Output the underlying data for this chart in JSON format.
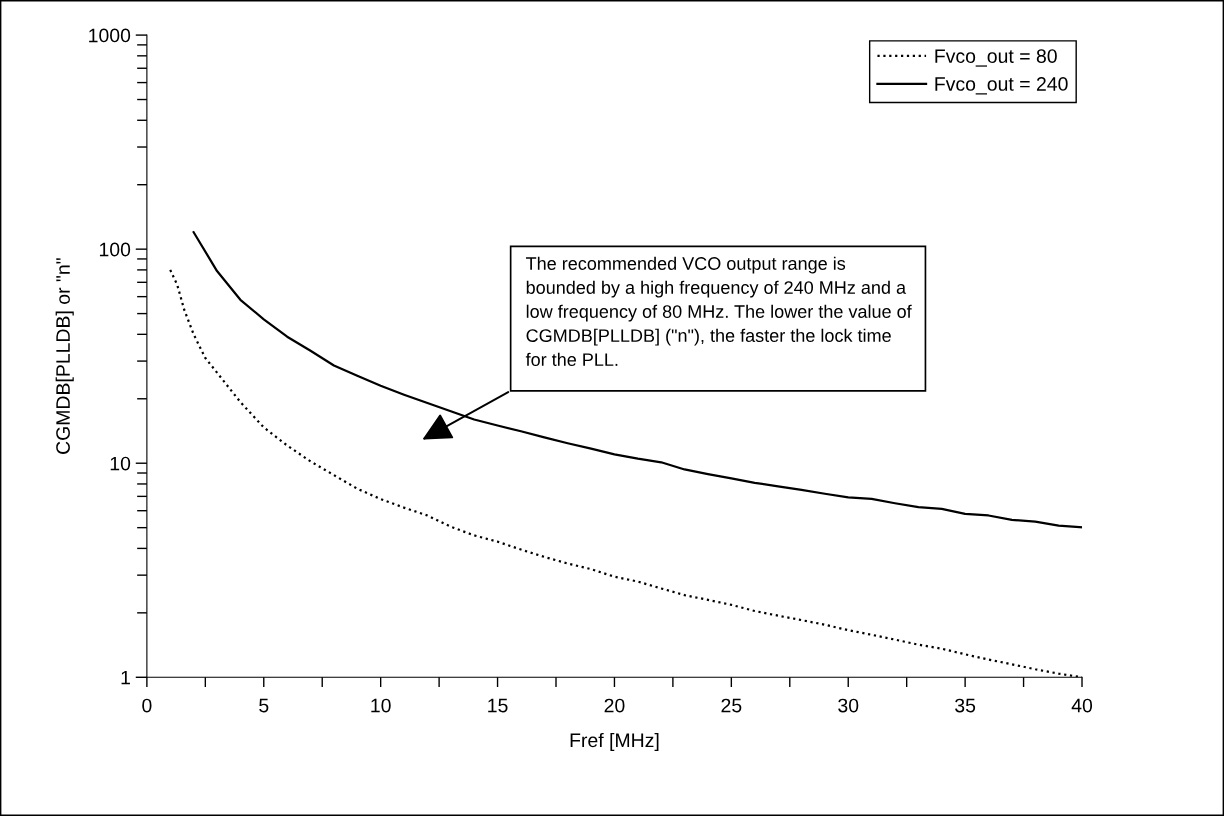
{
  "chart_data": {
    "type": "line",
    "xlabel": "Fref [MHz]",
    "ylabel": "CGMDB[PLLDB] or \"n\"",
    "log": "y",
    "xlim": [
      0,
      40
    ],
    "ylim": [
      1,
      1000
    ],
    "xticks": [
      0,
      {
        "value": 2.5,
        "label": null
      },
      5,
      {
        "value": 7.5,
        "label": null
      },
      10,
      {
        "value": 12.5,
        "label": null
      },
      15,
      {
        "value": 17.5,
        "label": null
      },
      20,
      {
        "value": 22.5,
        "label": null
      },
      25,
      {
        "value": 27.5,
        "label": null
      },
      30,
      {
        "value": 32.5,
        "label": null
      },
      35,
      {
        "value": 37.5,
        "label": null
      },
      40
    ],
    "yticks": [
      1,
      10,
      100,
      1000
    ],
    "grid": false,
    "legend": "top right",
    "annotations": [
      "The recommended VCO output range is bounded by a high frequency of 240 MHz and a low frequency of 80 MHz. The lower the value of CGMDB[PLLDB] (\"n\"), the faster the lock time for the PLL."
    ],
    "series": [
      {
        "name": "Fvco_out = 80",
        "color": "#000000",
        "line_style": "dotted",
        "x": [
          1,
          1.3,
          1.6,
          2,
          2.5,
          3,
          4,
          5,
          6,
          7,
          8,
          9,
          10,
          11,
          12,
          13,
          14,
          15,
          16,
          17,
          18,
          19,
          20,
          21,
          22,
          23,
          24,
          25,
          26,
          27,
          28,
          29,
          30,
          31,
          32,
          33,
          34,
          35,
          36,
          37,
          38,
          39,
          40
        ],
        "values": [
          80,
          68,
          52,
          40,
          31,
          26.5,
          19.3,
          14.7,
          12.1,
          10.2,
          8.8,
          7.6,
          6.8,
          6.2,
          5.7,
          5.05,
          4.6,
          4.3,
          3.95,
          3.65,
          3.4,
          3.2,
          2.95,
          2.8,
          2.6,
          2.42,
          2.3,
          2.18,
          2.04,
          1.94,
          1.85,
          1.76,
          1.66,
          1.58,
          1.5,
          1.42,
          1.36,
          1.28,
          1.21,
          1.15,
          1.09,
          1.04,
          1.0
        ]
      },
      {
        "name": "Fvco_out = 240",
        "color": "#000000",
        "line_style": "solid",
        "x": [
          2,
          3,
          4,
          5,
          6,
          7,
          8,
          9,
          10,
          11,
          12,
          13,
          14,
          15,
          16,
          17,
          18,
          19,
          20,
          21,
          22,
          23,
          24,
          25,
          26,
          27,
          28,
          29,
          30,
          31,
          32,
          33,
          34,
          35,
          36,
          37,
          38,
          39,
          40
        ],
        "values": [
          120,
          79,
          58,
          47,
          39,
          33.5,
          28.6,
          25.6,
          23,
          20.9,
          19.1,
          17.5,
          16.0,
          15.0,
          14.1,
          13.2,
          12.4,
          11.7,
          11.0,
          10.5,
          10.1,
          9.35,
          8.9,
          8.5,
          8.1,
          7.8,
          7.5,
          7.2,
          6.93,
          6.82,
          6.5,
          6.23,
          6.12,
          5.8,
          5.7,
          5.44,
          5.34,
          5.11,
          5.02
        ]
      }
    ]
  }
}
